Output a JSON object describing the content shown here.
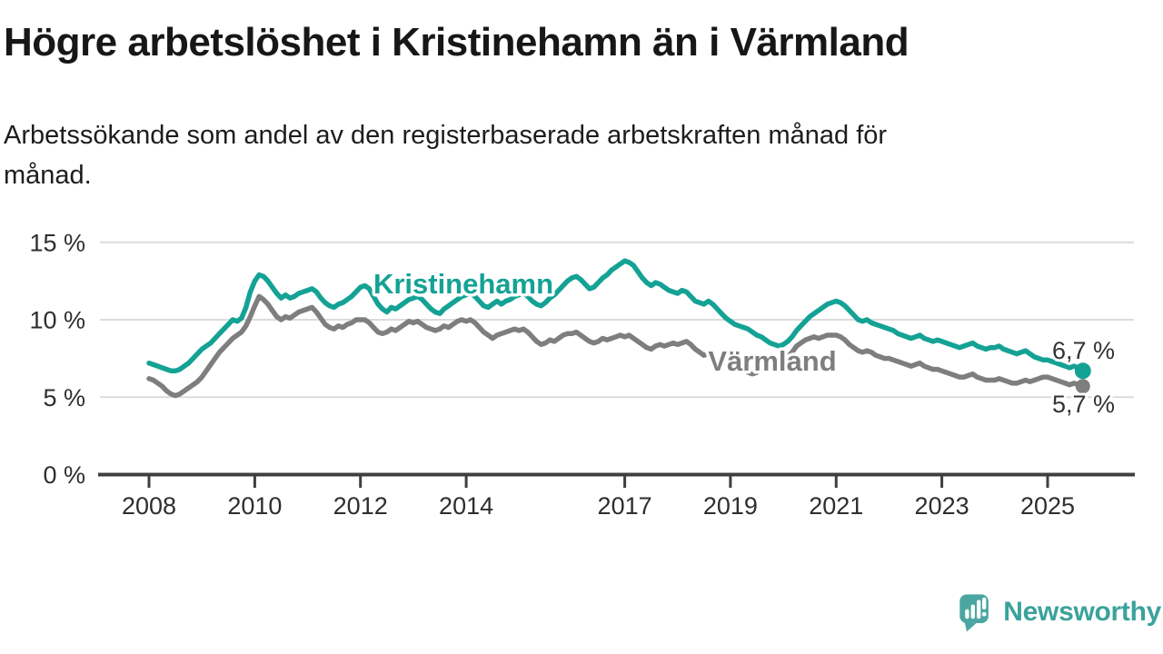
{
  "header": {
    "title": "Högre arbetslöshet i Kristinehamn än i Värmland",
    "subtitle_line1": "Arbetssökande som andel av den registerbaserade arbetskraften månad för",
    "subtitle_line2": "månad."
  },
  "chart_data": {
    "type": "line",
    "title": "Högre arbetslöshet i Kristinehamn än i Värmland",
    "subtitle": "Arbetssökande som andel av den registerbaserade arbetskraften månad för månad.",
    "x_unit": "month",
    "x_start": "2008-01",
    "x_end": "2025-09",
    "x_ticks": [
      2008,
      2010,
      2012,
      2014,
      2017,
      2019,
      2021,
      2023,
      2025
    ],
    "y_ticks": [
      0,
      5,
      10,
      15
    ],
    "y_tick_labels": [
      "0 %",
      "5 %",
      "10 %",
      "15 %"
    ],
    "ylim": [
      0,
      16.5
    ],
    "grid": true,
    "legend_position": "inline-labels",
    "colors": {
      "accent_teal": "#14a295",
      "gray": "#7e7e7e",
      "gridline": "#dbdbdb",
      "axis": "#3f3f3f",
      "text": "#1a1a1a",
      "value_label": "#333333"
    },
    "series": [
      {
        "name": "Kristinehamn",
        "color": "#14a295",
        "end_label": "6,7 %",
        "last_value": 6.7,
        "values": [
          7.2,
          7.1,
          7.0,
          6.9,
          6.8,
          6.7,
          6.7,
          6.8,
          7.0,
          7.2,
          7.5,
          7.8,
          8.1,
          8.3,
          8.5,
          8.8,
          9.1,
          9.4,
          9.7,
          10.0,
          9.9,
          10.1,
          10.8,
          11.8,
          12.5,
          12.9,
          12.8,
          12.5,
          12.1,
          11.7,
          11.4,
          11.6,
          11.4,
          11.5,
          11.7,
          11.8,
          11.9,
          12.0,
          11.8,
          11.4,
          11.1,
          10.9,
          10.8,
          11.0,
          11.1,
          11.3,
          11.5,
          11.8,
          12.1,
          12.2,
          12.0,
          11.5,
          11.0,
          10.7,
          10.5,
          10.8,
          10.7,
          10.9,
          11.1,
          11.3,
          11.4,
          11.5,
          11.3,
          11.0,
          10.7,
          10.5,
          10.4,
          10.7,
          10.9,
          11.1,
          11.3,
          11.5,
          11.6,
          11.7,
          11.5,
          11.2,
          10.9,
          10.8,
          11.0,
          11.2,
          11.0,
          11.2,
          11.3,
          11.5,
          11.6,
          11.7,
          11.5,
          11.2,
          11.0,
          10.9,
          11.1,
          11.4,
          11.6,
          11.9,
          12.2,
          12.5,
          12.7,
          12.8,
          12.6,
          12.3,
          12.0,
          12.1,
          12.4,
          12.7,
          12.9,
          13.2,
          13.4,
          13.6,
          13.8,
          13.7,
          13.5,
          13.1,
          12.7,
          12.4,
          12.2,
          12.4,
          12.3,
          12.1,
          11.9,
          11.8,
          11.7,
          11.9,
          11.8,
          11.5,
          11.2,
          11.1,
          11.0,
          11.2,
          11.0,
          10.7,
          10.4,
          10.1,
          9.9,
          9.7,
          9.6,
          9.5,
          9.4,
          9.2,
          9.0,
          8.9,
          8.7,
          8.5,
          8.4,
          8.3,
          8.4,
          8.6,
          8.9,
          9.3,
          9.6,
          9.9,
          10.2,
          10.4,
          10.6,
          10.8,
          11.0,
          11.1,
          11.2,
          11.1,
          10.9,
          10.6,
          10.3,
          10.0,
          9.9,
          10.0,
          9.8,
          9.7,
          9.6,
          9.5,
          9.4,
          9.3,
          9.1,
          9.0,
          8.9,
          8.8,
          8.9,
          9.0,
          8.8,
          8.7,
          8.6,
          8.7,
          8.6,
          8.5,
          8.4,
          8.3,
          8.2,
          8.3,
          8.4,
          8.5,
          8.3,
          8.2,
          8.1,
          8.2,
          8.2,
          8.3,
          8.1,
          8.0,
          7.9,
          7.8,
          7.9,
          8.0,
          7.8,
          7.6,
          7.5,
          7.4,
          7.4,
          7.3,
          7.2,
          7.1,
          7.0,
          6.9,
          7.0,
          6.9,
          6.7
        ]
      },
      {
        "name": "Värmland",
        "color": "#7e7e7e",
        "end_label": "5,7 %",
        "last_value": 5.7,
        "values": [
          6.2,
          6.1,
          5.9,
          5.7,
          5.4,
          5.2,
          5.1,
          5.2,
          5.4,
          5.6,
          5.8,
          6.0,
          6.3,
          6.7,
          7.1,
          7.5,
          7.9,
          8.2,
          8.5,
          8.8,
          9.0,
          9.2,
          9.6,
          10.2,
          10.9,
          11.5,
          11.3,
          11.0,
          10.6,
          10.2,
          10.0,
          10.2,
          10.1,
          10.3,
          10.5,
          10.6,
          10.7,
          10.8,
          10.5,
          10.1,
          9.7,
          9.5,
          9.4,
          9.6,
          9.5,
          9.7,
          9.8,
          10.0,
          10.0,
          10.0,
          9.8,
          9.5,
          9.2,
          9.1,
          9.2,
          9.4,
          9.3,
          9.5,
          9.7,
          9.9,
          9.8,
          9.9,
          9.7,
          9.5,
          9.4,
          9.3,
          9.4,
          9.6,
          9.5,
          9.7,
          9.9,
          10.0,
          9.9,
          10.0,
          9.8,
          9.5,
          9.2,
          9.0,
          8.8,
          9.0,
          9.1,
          9.2,
          9.3,
          9.4,
          9.3,
          9.4,
          9.2,
          8.9,
          8.6,
          8.4,
          8.5,
          8.7,
          8.6,
          8.8,
          9.0,
          9.1,
          9.1,
          9.2,
          9.0,
          8.8,
          8.6,
          8.5,
          8.6,
          8.8,
          8.7,
          8.8,
          8.9,
          9.0,
          8.9,
          9.0,
          8.8,
          8.6,
          8.4,
          8.2,
          8.1,
          8.3,
          8.4,
          8.3,
          8.4,
          8.5,
          8.4,
          8.5,
          8.6,
          8.4,
          8.1,
          7.9,
          7.7,
          7.8,
          7.6,
          7.4,
          7.3,
          7.2,
          7.1,
          7.0,
          6.9,
          6.8,
          6.6,
          6.5,
          6.6,
          6.8,
          6.9,
          7.0,
          7.2,
          7.3,
          7.4,
          7.6,
          7.9,
          8.3,
          8.5,
          8.7,
          8.8,
          8.9,
          8.8,
          8.9,
          9.0,
          9.0,
          9.0,
          8.9,
          8.7,
          8.4,
          8.2,
          8.0,
          7.9,
          8.0,
          7.9,
          7.7,
          7.6,
          7.5,
          7.5,
          7.4,
          7.3,
          7.2,
          7.1,
          7.0,
          7.1,
          7.2,
          7.0,
          6.9,
          6.8,
          6.8,
          6.7,
          6.6,
          6.5,
          6.4,
          6.3,
          6.3,
          6.4,
          6.5,
          6.3,
          6.2,
          6.1,
          6.1,
          6.1,
          6.2,
          6.1,
          6.0,
          5.9,
          5.9,
          6.0,
          6.1,
          6.0,
          6.1,
          6.2,
          6.3,
          6.3,
          6.2,
          6.1,
          6.0,
          5.9,
          5.8,
          5.9,
          5.8,
          5.7
        ]
      }
    ]
  },
  "branding": {
    "logo_text": "Newsworthy",
    "logo_color": "#4ba6a1",
    "logo_text_color": "#3aa29b"
  }
}
